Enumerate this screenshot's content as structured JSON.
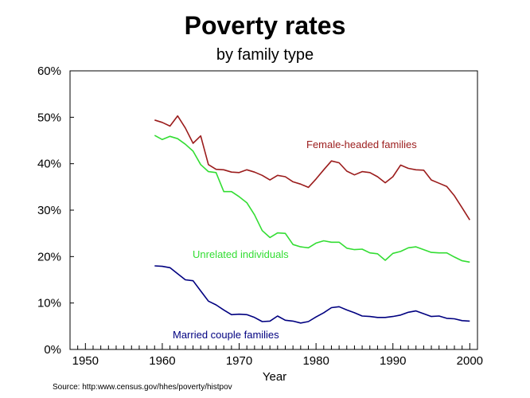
{
  "title": "Poverty rates",
  "subtitle": "by family type",
  "source": "Source:  http:www.census.gov/hhes/poverty/histpov",
  "chart_data": {
    "type": "line",
    "title": "Poverty rates",
    "subtitle": "by family type",
    "xlabel": "Year",
    "ylabel": "",
    "xlim": [
      1948,
      2001
    ],
    "ylim": [
      0,
      60
    ],
    "xticks": [
      1950,
      1960,
      1970,
      1980,
      1990,
      2000
    ],
    "xtick_labels": [
      "1950",
      "1960",
      "1970",
      "1980",
      "1990",
      "2000"
    ],
    "yticks": [
      0,
      10,
      20,
      30,
      40,
      50,
      60
    ],
    "ytick_labels": [
      "0%",
      "10%",
      "20%",
      "30%",
      "40%",
      "50%",
      "60%"
    ],
    "grid": false,
    "series": [
      {
        "name": "Female-headed families",
        "color": "#9b1c1c",
        "x": [
          1959,
          1960,
          1961,
          1962,
          1963,
          1964,
          1965,
          1966,
          1967,
          1968,
          1969,
          1970,
          1971,
          1972,
          1973,
          1974,
          1975,
          1976,
          1977,
          1978,
          1979,
          1980,
          1981,
          1982,
          1983,
          1984,
          1985,
          1986,
          1987,
          1988,
          1989,
          1990,
          1991,
          1992,
          1993,
          1994,
          1995,
          1996,
          1997,
          1998,
          1999,
          2000
        ],
        "values": [
          49.4,
          48.9,
          48.1,
          50.3,
          47.7,
          44.4,
          46.0,
          39.8,
          38.8,
          38.7,
          38.2,
          38.1,
          38.7,
          38.2,
          37.5,
          36.5,
          37.5,
          37.2,
          36.1,
          35.6,
          34.9,
          36.7,
          38.7,
          40.6,
          40.2,
          38.4,
          37.6,
          38.3,
          38.1,
          37.2,
          35.9,
          37.2,
          39.7,
          39.0,
          38.7,
          38.6,
          36.5,
          35.8,
          35.1,
          33.1,
          30.5,
          27.9
        ]
      },
      {
        "name": "Unrelated individuals",
        "color": "#33dd33",
        "x": [
          1959,
          1960,
          1961,
          1962,
          1963,
          1964,
          1965,
          1966,
          1967,
          1968,
          1969,
          1970,
          1971,
          1972,
          1973,
          1974,
          1975,
          1976,
          1977,
          1978,
          1979,
          1980,
          1981,
          1982,
          1983,
          1984,
          1985,
          1986,
          1987,
          1988,
          1989,
          1990,
          1991,
          1992,
          1993,
          1994,
          1995,
          1996,
          1997,
          1998,
          1999,
          2000
        ],
        "values": [
          46.1,
          45.2,
          45.9,
          45.4,
          44.2,
          42.7,
          39.8,
          38.3,
          38.1,
          34.0,
          34.0,
          32.9,
          31.6,
          29.0,
          25.6,
          24.1,
          25.1,
          25.0,
          22.6,
          22.1,
          21.9,
          22.9,
          23.4,
          23.1,
          23.1,
          21.8,
          21.5,
          21.6,
          20.8,
          20.6,
          19.2,
          20.7,
          21.1,
          21.9,
          22.1,
          21.5,
          20.9,
          20.8,
          20.8,
          19.9,
          19.1,
          18.8
        ]
      },
      {
        "name": "Married couple families",
        "color": "#000080",
        "x": [
          1959,
          1960,
          1961,
          1962,
          1963,
          1964,
          1965,
          1966,
          1967,
          1968,
          1969,
          1970,
          1971,
          1972,
          1973,
          1974,
          1975,
          1976,
          1977,
          1978,
          1979,
          1980,
          1981,
          1982,
          1983,
          1984,
          1985,
          1986,
          1987,
          1988,
          1989,
          1990,
          1991,
          1992,
          1993,
          1994,
          1995,
          1996,
          1997,
          1998,
          1999,
          2000
        ],
        "values": [
          18.0,
          17.9,
          17.6,
          16.3,
          15.0,
          14.8,
          12.6,
          10.4,
          9.6,
          8.5,
          7.5,
          7.6,
          7.5,
          6.9,
          6.0,
          6.1,
          7.2,
          6.3,
          6.1,
          5.7,
          6.0,
          7.0,
          7.9,
          9.0,
          9.2,
          8.5,
          7.9,
          7.2,
          7.1,
          6.9,
          6.9,
          7.1,
          7.4,
          8.0,
          8.3,
          7.7,
          7.1,
          7.2,
          6.7,
          6.6,
          6.2,
          6.1
        ]
      }
    ],
    "annotations": [
      {
        "text": "Female-headed families",
        "series": "Female-headed families"
      },
      {
        "text": "Unrelated individuals",
        "series": "Unrelated individuals"
      },
      {
        "text": "Married couple families",
        "series": "Married couple families"
      }
    ]
  }
}
